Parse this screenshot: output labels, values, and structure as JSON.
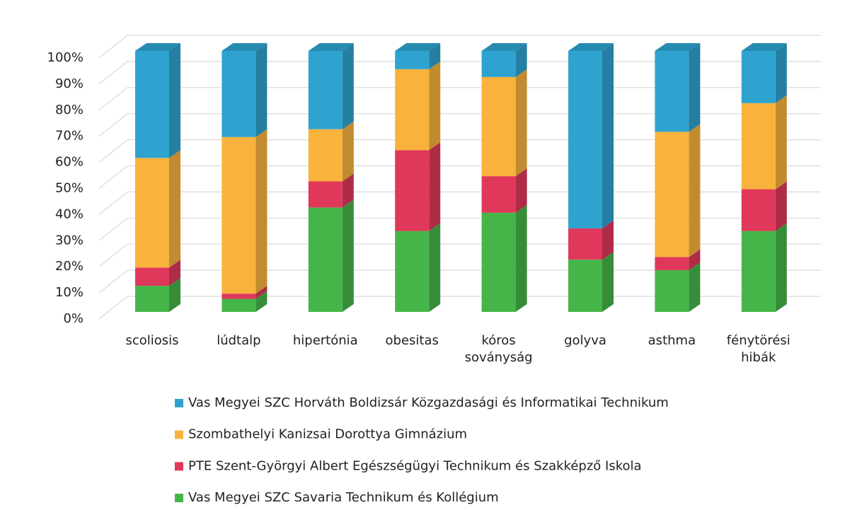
{
  "chart_data": {
    "type": "bar",
    "stacked": true,
    "categories": [
      "scoliosis",
      "lúdtalp",
      "hipertónia",
      "obesitas",
      "kóros soványság",
      "golyva",
      "asthma",
      "fénytörési hibák"
    ],
    "series": [
      {
        "name": "Vas Megyei SZC Savaria Technikum és Kollégium",
        "color": "#45b549",
        "values": [
          10,
          5,
          40,
          31,
          38,
          20,
          16,
          31
        ]
      },
      {
        "name": "PTE Szent-Györgyi Albert Egészségügyi Technikum és Szakképző Iskola",
        "color": "#e0385a",
        "values": [
          7,
          2,
          10,
          31,
          14,
          12,
          5,
          16
        ]
      },
      {
        "name": "Szombathelyi Kanizsai Dorottya Gimnázium",
        "color": "#f9b23c",
        "values": [
          42,
          60,
          20,
          31,
          38,
          0,
          48,
          33
        ]
      },
      {
        "name": "Vas Megyei SZC Horváth Boldizsár Közgazdasági és Informatikai Technikum",
        "color": "#2ea3d0",
        "values": [
          41,
          33,
          30,
          7,
          10,
          68,
          31,
          20
        ]
      }
    ],
    "ylim": [
      0,
      100
    ],
    "yticks": [
      {
        "value": 0,
        "label": "0%"
      },
      {
        "value": 10,
        "label": "10%"
      },
      {
        "value": 20,
        "label": "20%"
      },
      {
        "value": 30,
        "label": "30%"
      },
      {
        "value": 40,
        "label": "40%"
      },
      {
        "value": 50,
        "label": "50%"
      },
      {
        "value": 60,
        "label": "60%"
      },
      {
        "value": 70,
        "label": "70%"
      },
      {
        "value": 80,
        "label": "80%"
      },
      {
        "value": 90,
        "label": "90%"
      },
      {
        "value": 100,
        "label": "100%"
      }
    ],
    "grid": true
  }
}
